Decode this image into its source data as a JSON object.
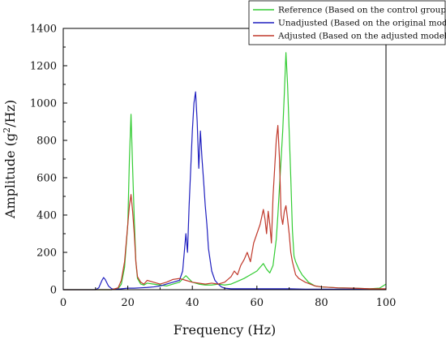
{
  "chart_data": {
    "type": "line",
    "xlabel": "Frequency (Hz)",
    "ylabel_prefix": "Amplitude (g",
    "ylabel_sup": "2",
    "ylabel_suffix": "/Hz)",
    "xlim": [
      0,
      100
    ],
    "ylim": [
      0,
      1400
    ],
    "xticks": [
      "0",
      "20",
      "40",
      "60",
      "80",
      "100"
    ],
    "yticks": [
      "0",
      "200",
      "400",
      "600",
      "800",
      "1000",
      "1200",
      "1400"
    ],
    "legend_position": "top-right",
    "grid": false,
    "series": [
      {
        "name": "Reference (Based on the control group)",
        "color": "#33cc33",
        "x": [
          0,
          10,
          15,
          17,
          18,
          19,
          20,
          20.5,
          21,
          21.5,
          22,
          22.5,
          23,
          24,
          25,
          26,
          28,
          30,
          32,
          34,
          36,
          38,
          40,
          42,
          44,
          46,
          48,
          50,
          52,
          54,
          56,
          58,
          60,
          61,
          62,
          63,
          64,
          65,
          66,
          66.5,
          67,
          67.5,
          68,
          68.5,
          69,
          69.5,
          70,
          70.5,
          71,
          71.5,
          72,
          73,
          74,
          75,
          76,
          78,
          80,
          85,
          90,
          95,
          98,
          100
        ],
        "y": [
          0,
          0,
          0,
          5,
          30,
          120,
          350,
          700,
          940,
          650,
          380,
          150,
          60,
          30,
          25,
          35,
          30,
          25,
          20,
          30,
          40,
          75,
          40,
          30,
          25,
          25,
          30,
          25,
          30,
          45,
          60,
          80,
          100,
          120,
          140,
          110,
          90,
          130,
          270,
          400,
          550,
          700,
          850,
          1050,
          1270,
          1100,
          850,
          600,
          320,
          180,
          150,
          110,
          80,
          60,
          40,
          20,
          15,
          10,
          8,
          5,
          8,
          30
        ]
      },
      {
        "name": "Unadjusted (Based on the original model)",
        "color": "#1f1fbf",
        "x": [
          0,
          10,
          11,
          12,
          12.5,
          13,
          14,
          15,
          16,
          18,
          20,
          22,
          24,
          26,
          28,
          30,
          32,
          34,
          36,
          37,
          38,
          38.5,
          39,
          39.5,
          40,
          40.5,
          41,
          41.5,
          42,
          42.5,
          43,
          43.5,
          44,
          44.5,
          45,
          46,
          47,
          48,
          49,
          50,
          52,
          55,
          60,
          65,
          70,
          75,
          80,
          90,
          100
        ],
        "y": [
          0,
          0,
          10,
          50,
          65,
          55,
          20,
          5,
          2,
          5,
          8,
          8,
          10,
          12,
          15,
          20,
          30,
          40,
          50,
          100,
          300,
          200,
          450,
          650,
          850,
          1000,
          1060,
          900,
          650,
          850,
          700,
          580,
          450,
          350,
          220,
          100,
          50,
          30,
          15,
          8,
          5,
          5,
          5,
          5,
          5,
          3,
          3,
          3,
          3
        ]
      },
      {
        "name": "Adjusted (Based on the adjusted model)",
        "color": "#c0392b",
        "x": [
          0,
          10,
          15,
          17,
          18,
          19,
          20,
          20.5,
          21,
          21.5,
          22,
          22.5,
          23,
          24,
          25,
          26,
          28,
          30,
          32,
          34,
          36,
          38,
          40,
          42,
          44,
          46,
          48,
          50,
          52,
          53,
          54,
          55,
          56,
          57,
          58,
          59,
          60,
          61,
          62,
          62.5,
          63,
          63.5,
          64,
          64.5,
          65,
          65.5,
          66,
          66.5,
          67,
          67.5,
          68,
          68.5,
          69,
          69.5,
          70,
          70.5,
          71,
          72,
          73,
          74,
          75,
          78,
          80,
          85,
          90,
          95,
          100
        ],
        "y": [
          0,
          0,
          0,
          10,
          50,
          150,
          350,
          450,
          510,
          420,
          300,
          150,
          70,
          40,
          30,
          50,
          40,
          30,
          40,
          55,
          60,
          50,
          40,
          35,
          30,
          35,
          30,
          40,
          70,
          100,
          80,
          130,
          160,
          200,
          150,
          250,
          300,
          350,
          430,
          380,
          300,
          420,
          350,
          250,
          500,
          650,
          800,
          880,
          700,
          400,
          350,
          420,
          450,
          380,
          300,
          200,
          150,
          80,
          60,
          50,
          40,
          20,
          15,
          10,
          8,
          5,
          5
        ]
      }
    ]
  }
}
